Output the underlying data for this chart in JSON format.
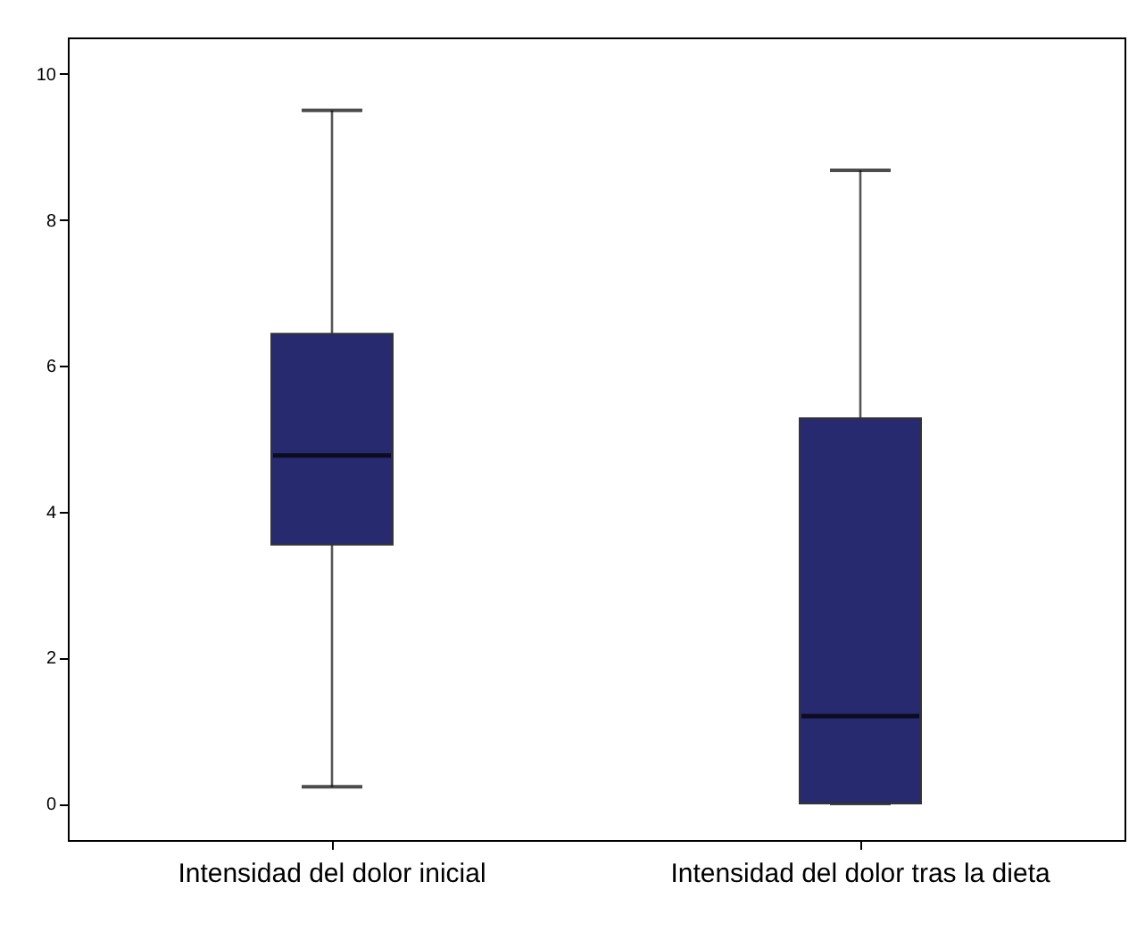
{
  "chart_data": {
    "type": "box",
    "categories": [
      "Intensidad del dolor inicial",
      "Intensidad del dolor tras la dieta"
    ],
    "boxes": [
      {
        "low": 0.23,
        "q1": 3.55,
        "median": 4.77,
        "q3": 6.44,
        "high": 9.5
      },
      {
        "low": 0,
        "q1": 0,
        "median": 1.2,
        "q3": 5.28,
        "high": 8.68
      }
    ],
    "color": "#282a70",
    "ylim": [
      -0.5,
      10.5
    ],
    "yticks": [
      0,
      2,
      4,
      6,
      8,
      10
    ]
  }
}
